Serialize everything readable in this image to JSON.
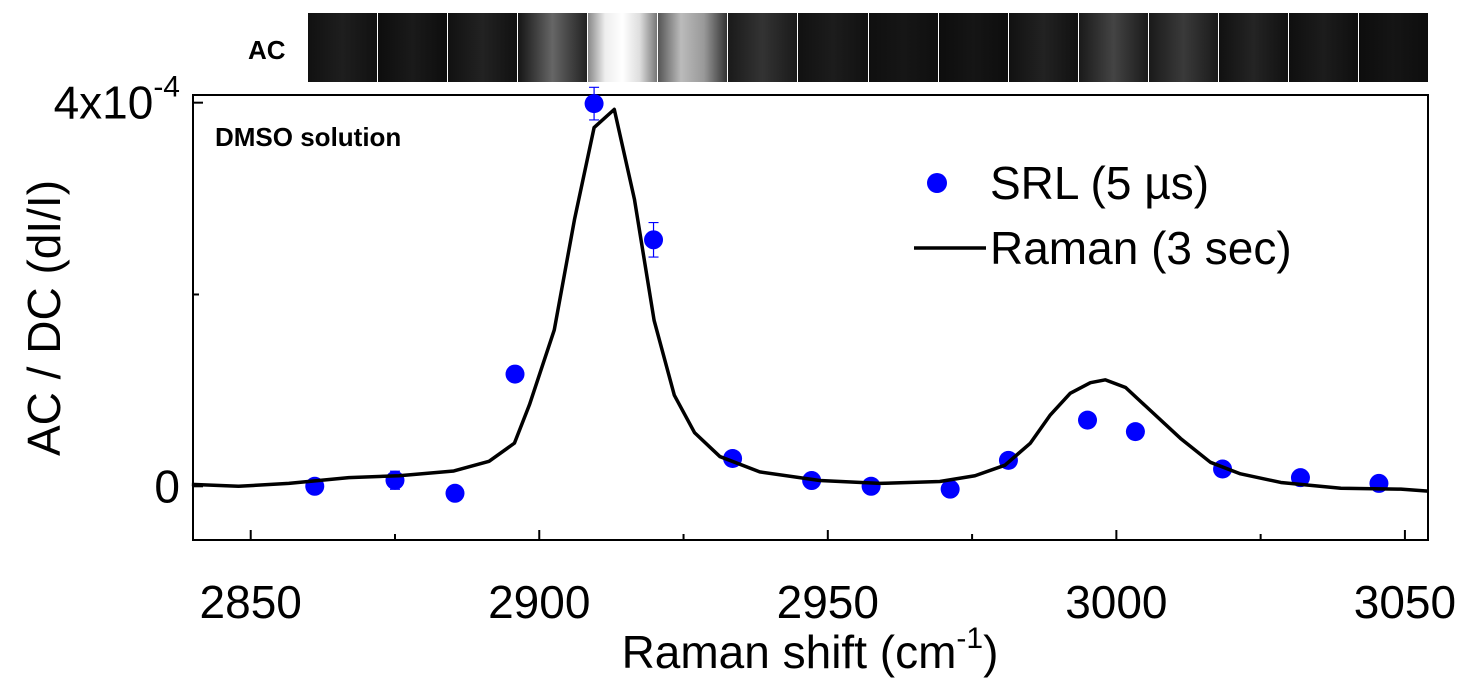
{
  "chart_data": {
    "type": "scatter",
    "annotations": [
      "AC",
      "DMSO solution"
    ],
    "y_label": "AC / DC (dI/I)",
    "x_label": [
      "Raman shift (cm",
      "-1",
      ")"
    ],
    "xlim": [
      2840,
      3054
    ],
    "ylim": [
      -5.6e-05,
      0.000408
    ],
    "xticks": [
      2850,
      2900,
      2950,
      3000,
      3050
    ],
    "xminorticks": [
      2875,
      2925,
      2975,
      3025
    ],
    "yticks": [
      0,
      {
        "value": 0.0004,
        "label": "4x10",
        "superscript": "-4"
      }
    ],
    "yminorticks": [
      0.0002
    ],
    "series": [
      {
        "name": "SRL (5 µs)",
        "type": "scatter",
        "color": "#0000ff",
        "x": [
          2861.1,
          2875.0,
          2885.4,
          2895.8,
          2909.5,
          2919.8,
          2933.5,
          2947.2,
          2957.5,
          2971.2,
          2981.3,
          2995.0,
          3003.3,
          3018.4,
          3031.9,
          3045.5
        ],
        "values": [
          0,
          6.3e-06,
          -7.3e-06,
          0.000117,
          0.000399,
          0.000257,
          2.9e-05,
          6e-06,
          0,
          -3e-06,
          2.7e-05,
          6.9e-05,
          5.7e-05,
          1.8e-05,
          9e-06,
          3e-06
        ],
        "errors": [
          null,
          9.4e-06,
          null,
          null,
          1.7e-05,
          1.8e-05,
          null,
          null,
          null,
          null,
          null,
          null,
          null,
          null,
          null,
          null
        ]
      },
      {
        "name": "Raman (3 sec)",
        "type": "line",
        "color": "#000000",
        "x": [
          2839.8,
          2847.9,
          2856.6,
          2867.0,
          2875.7,
          2885.2,
          2891.3,
          2895.7,
          2898.3,
          2902.6,
          2906.1,
          2909.5,
          2913.0,
          2916.5,
          2919.9,
          2923.4,
          2926.9,
          2931.3,
          2938.2,
          2948.6,
          2959.0,
          2969.4,
          2975.5,
          2980.7,
          2985.1,
          2988.5,
          2992.0,
          2995.5,
          2998.1,
          3001.6,
          3005.9,
          3011.1,
          3016.3,
          3021.5,
          3028.5,
          3038.9,
          3049.3,
          3054
        ],
        "values": [
          2e-06,
          0,
          3e-06,
          9e-06,
          1.1e-05,
          1.6e-05,
          2.6e-05,
          4.5e-05,
          8.5e-05,
          0.000163,
          0.000278,
          0.000374,
          0.000393,
          0.000299,
          0.000173,
          9.5e-05,
          5.6e-05,
          3.1e-05,
          1.5e-05,
          6e-06,
          3e-06,
          5e-06,
          1.1e-05,
          2.2e-05,
          4.5e-05,
          7.4e-05,
          9.7e-05,
          0.000108,
          0.000111,
          0.000103,
          7.9e-05,
          5e-05,
          2.5e-05,
          1.3e-05,
          4e-06,
          -2e-06,
          -3e-06,
          -5e-06
        ]
      }
    ],
    "legend": "upper right"
  }
}
